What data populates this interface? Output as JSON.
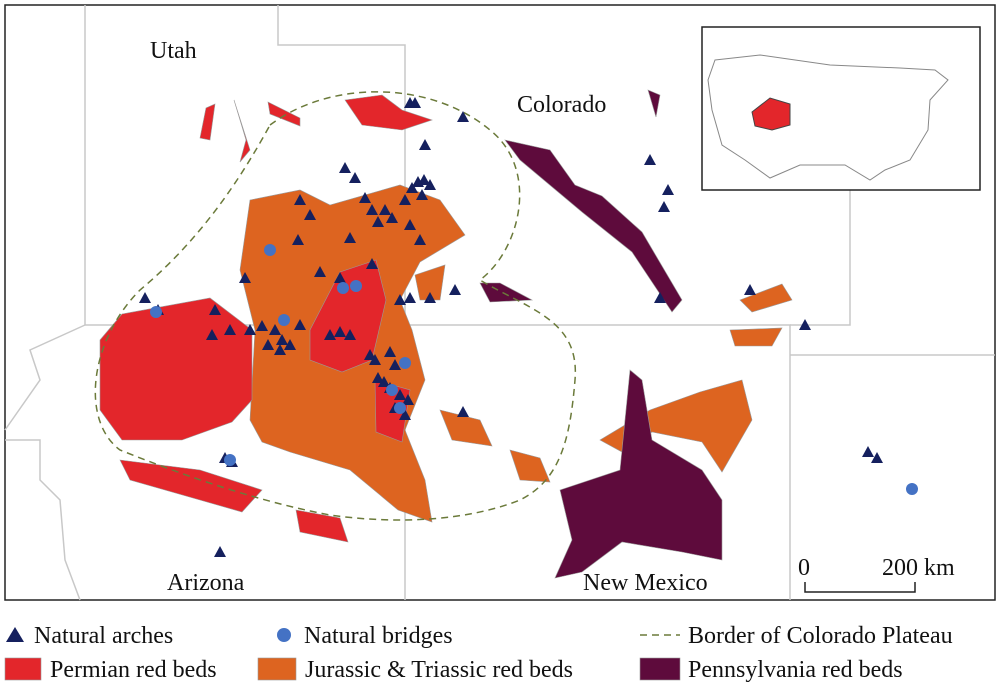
{
  "map": {
    "states": [
      "Utah",
      "Colorado",
      "Arizona",
      "New Mexico"
    ],
    "scale_bar": {
      "start": "0",
      "end": "200 km"
    }
  },
  "legend": [
    {
      "label": "Natural arches"
    },
    {
      "label": "Natural bridges"
    },
    {
      "label": "Border of Colorado Plateau"
    },
    {
      "label": "Permian red beds"
    },
    {
      "label": "Jurassic & Triassic red beds"
    },
    {
      "label": "Pennsylvania red beds"
    }
  ]
}
